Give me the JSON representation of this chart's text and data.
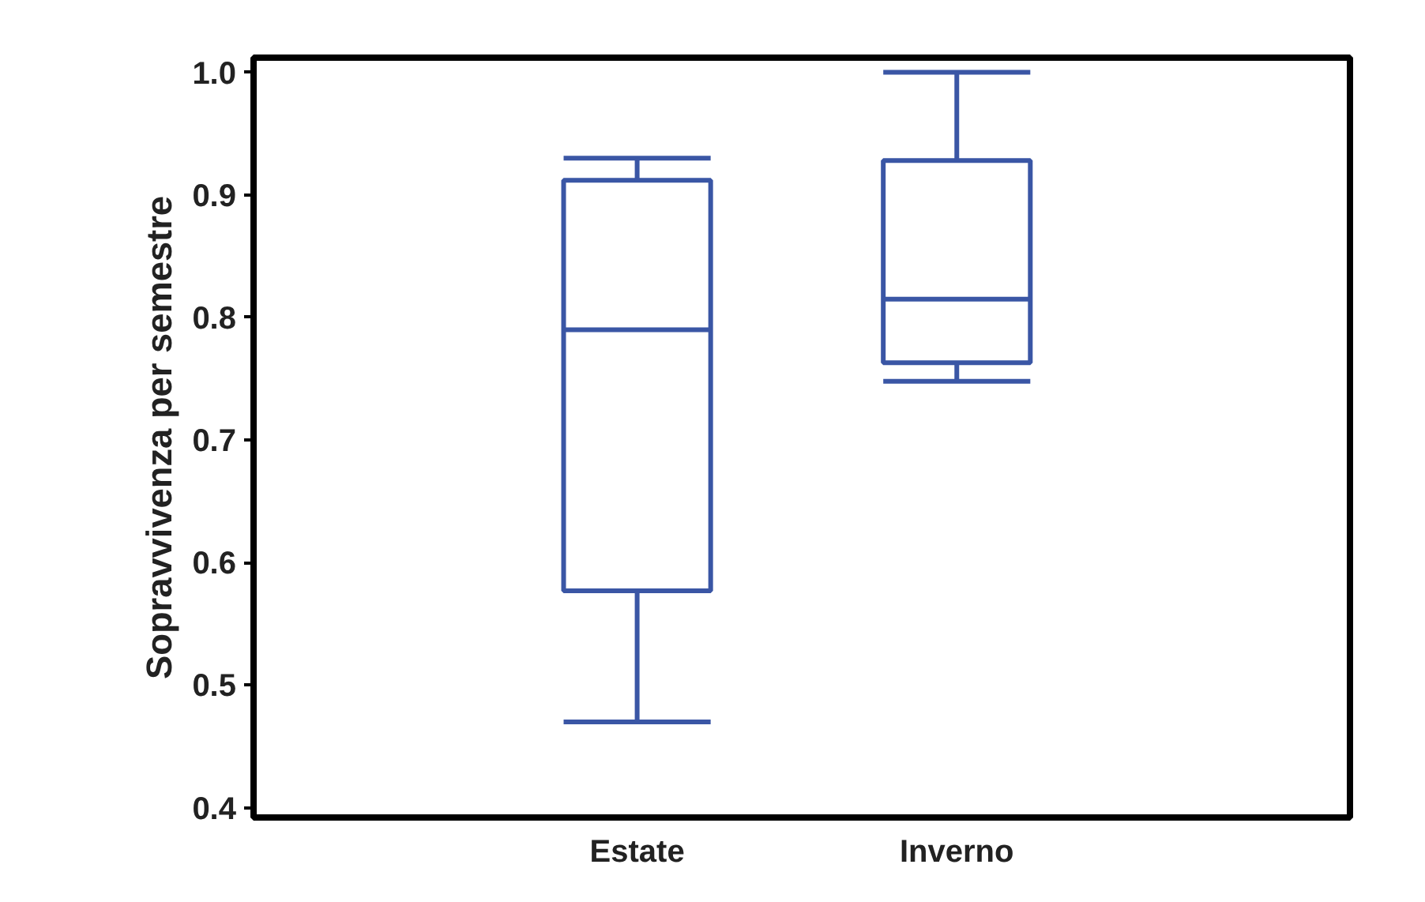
{
  "chart_data": {
    "type": "box",
    "ylabel": "Sopravvivenza per semestre",
    "categories": [
      "Estate",
      "Inverno"
    ],
    "color": "#3a56a5",
    "boxes": [
      {
        "low": 0.47,
        "q1": 0.577,
        "median": 0.79,
        "q3": 0.912,
        "high": 0.93
      },
      {
        "low": 0.748,
        "q1": 0.763,
        "median": 0.815,
        "q3": 0.928,
        "high": 1.0
      }
    ],
    "ylim": [
      0.392,
      1.012
    ],
    "yticks": [
      {
        "value": 0.4,
        "label": "0.4"
      },
      {
        "value": 0.5,
        "label": "0.5"
      },
      {
        "value": 0.6,
        "label": "0.6"
      },
      {
        "value": 0.7,
        "label": "0.7"
      },
      {
        "value": 0.8,
        "label": "0.8"
      },
      {
        "value": 0.9,
        "label": "0.9"
      },
      {
        "value": 1.0,
        "label": "1.0"
      }
    ],
    "grid": false
  }
}
